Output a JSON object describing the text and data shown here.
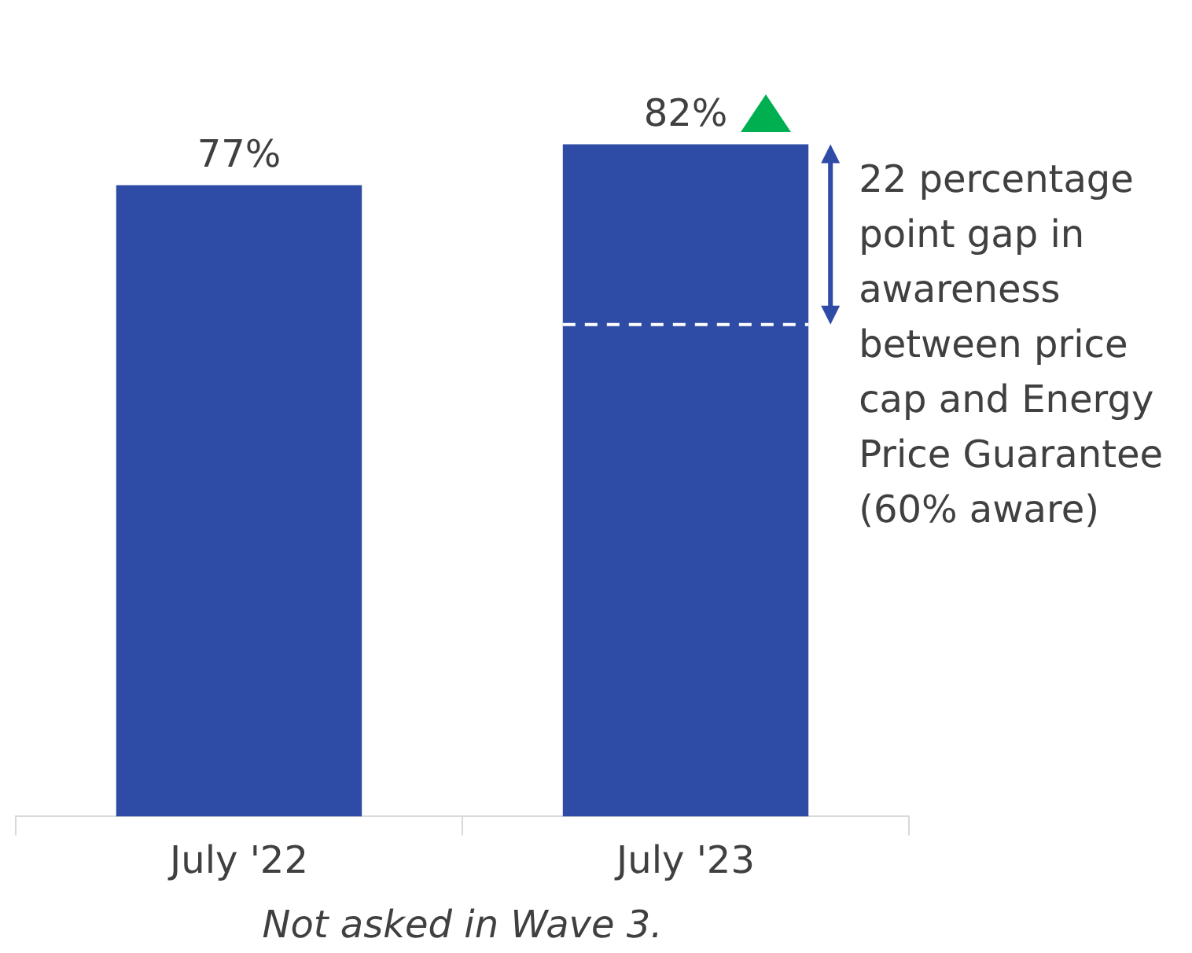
{
  "chart_data": {
    "type": "bar",
    "categories": [
      "July '22",
      "July '23"
    ],
    "values": [
      77,
      82
    ],
    "color": "#2e4ba6",
    "value_labels": [
      "77%",
      "82%"
    ],
    "ref_lines": [
      {
        "axis": "y",
        "value": 60,
        "label": "22 percentage point gap in awareness between price cap and Energy Price Guarantee (60% aware)",
        "color": "#ffffff",
        "line_style": "dashed"
      }
    ],
    "annotations": [
      "Not asked in Wave 3."
    ],
    "grid": false,
    "legend": false
  }
}
